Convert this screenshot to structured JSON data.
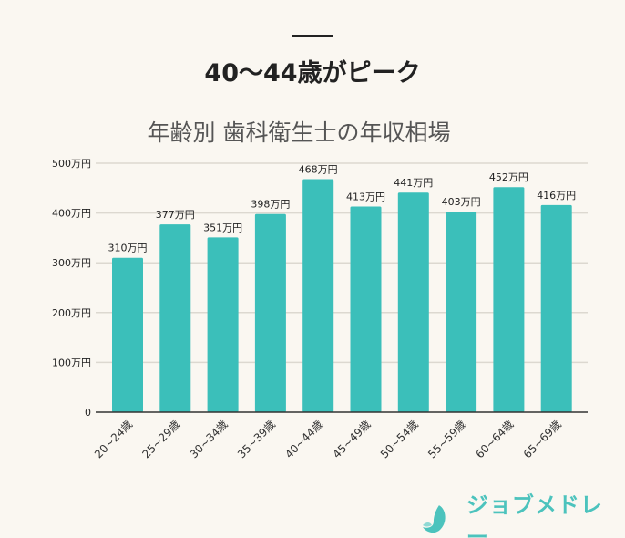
{
  "headline": "40～44歳がピーク",
  "logo": {
    "text": "ジョブメドレー",
    "color": "#4cc3bd"
  },
  "chart_data": {
    "type": "bar",
    "title": "年齢別 歯科衛生士の年収相場",
    "categories": [
      "20~24歳",
      "25~29歳",
      "30~34歳",
      "35~39歳",
      "40~44歳",
      "45~49歳",
      "50~54歳",
      "55~59歳",
      "60~64歳",
      "65~69歳"
    ],
    "values": [
      310,
      377,
      351,
      398,
      468,
      413,
      441,
      403,
      452,
      416
    ],
    "data_labels": [
      "310万円",
      "377万円",
      "351万円",
      "398万円",
      "468万円",
      "413万円",
      "441万円",
      "403万円",
      "452万円",
      "416万円"
    ],
    "ylim": [
      0,
      500
    ],
    "yticks": [
      0,
      100,
      200,
      300,
      400,
      500
    ],
    "ytick_labels": [
      "0",
      "100万円",
      "200万円",
      "300万円",
      "400万円",
      "500万円"
    ],
    "grid": true,
    "bar_color": "#3bbfba"
  }
}
